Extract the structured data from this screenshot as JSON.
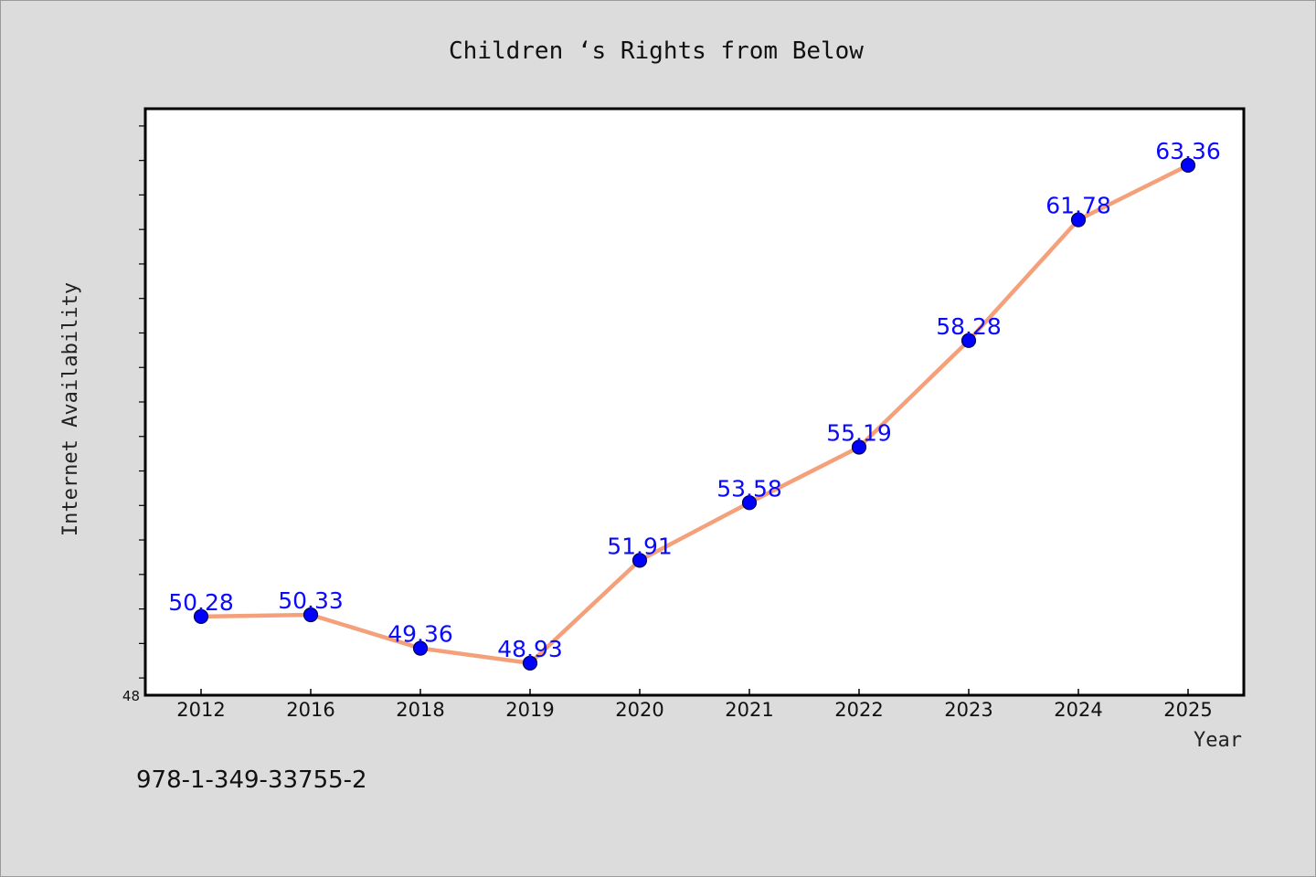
{
  "chart_data": {
    "type": "line",
    "title": "Children ‘s Rights from Below",
    "xlabel": "Year",
    "ylabel": "Internet Availability",
    "categories": [
      "2012",
      "2016",
      "2018",
      "2019",
      "2020",
      "2021",
      "2022",
      "2023",
      "2024",
      "2025"
    ],
    "series": [
      {
        "values": [
          50.28,
          50.33,
          49.36,
          48.93,
          51.91,
          53.58,
          55.19,
          58.28,
          61.78,
          63.36
        ]
      }
    ],
    "data_labels": [
      "50.28",
      "50.33",
      "49.36",
      "48.93",
      "51.91",
      "53.58",
      "55.19",
      "58.28",
      "61.78",
      "63.36"
    ],
    "ylim": [
      48,
      65
    ],
    "ytick_labels": [
      "48"
    ],
    "grid": false,
    "line_color": "#f4a07a",
    "marker_color": "#0000ff",
    "label_color": "#0a0aff"
  },
  "footer": {
    "isbn": "978-1-349-33755-2"
  }
}
